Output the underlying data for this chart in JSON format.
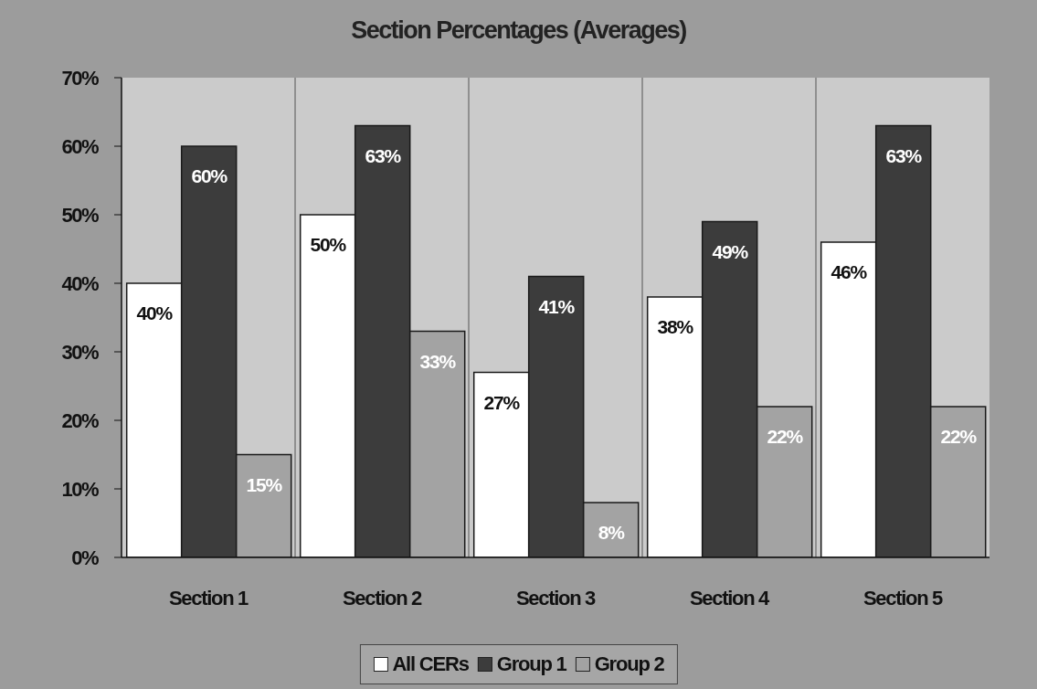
{
  "chart_data": {
    "type": "bar",
    "title": "Section Percentages (Averages)",
    "categories": [
      "Section 1",
      "Section 2",
      "Section 3",
      "Section 4",
      "Section 5"
    ],
    "series": [
      {
        "name": "All CERs",
        "color": "#ffffff",
        "values": [
          40,
          50,
          27,
          38,
          46
        ],
        "value_labels": [
          "40%",
          "50%",
          "27%",
          "38%",
          "46%"
        ]
      },
      {
        "name": "Group 1",
        "color": "#3c3c3c",
        "values": [
          60,
          63,
          41,
          49,
          63
        ],
        "value_labels": [
          "60%",
          "63%",
          "41%",
          "49%",
          "63%"
        ]
      },
      {
        "name": "Group 2",
        "color": "#a3a3a3",
        "values": [
          15,
          33,
          8,
          22,
          22
        ],
        "value_labels": [
          "15%",
          "33%",
          "8%",
          "22%",
          "22%"
        ]
      }
    ],
    "ylim": [
      0,
      70
    ],
    "yticks": [
      {
        "value": 0,
        "label": "0%"
      },
      {
        "value": 10,
        "label": "10%"
      },
      {
        "value": 20,
        "label": "20%"
      },
      {
        "value": 30,
        "label": "30%"
      },
      {
        "value": 40,
        "label": "40%"
      },
      {
        "value": 50,
        "label": "50%"
      },
      {
        "value": 60,
        "label": "60%"
      },
      {
        "value": 70,
        "label": "70%"
      }
    ],
    "grid": "x",
    "legend": "bottom"
  }
}
